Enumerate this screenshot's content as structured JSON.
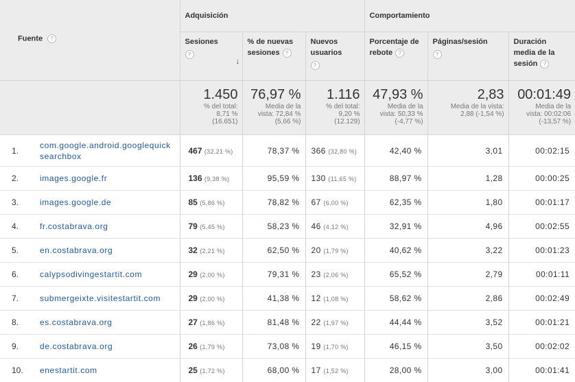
{
  "header": {
    "fuente_label": "Fuente",
    "group_adquisicion": "Adquisición",
    "group_comportamiento": "Comportamiento",
    "col_sesiones": "Sesiones",
    "col_nuevas_sesiones": "% de nuevas sesiones",
    "col_nuevos_usuarios": "Nuevos usuarios",
    "col_rebote": "Porcentaje de rebote",
    "col_paginas": "Páginas/sesión",
    "col_duracion": "Duración media de la sesión",
    "help_glyph": "?",
    "sort_glyph": "↓"
  },
  "totals": {
    "sesiones": {
      "value": "1.450",
      "line1": "% del total:",
      "line2": "8,71 %",
      "line3": "(16.651)"
    },
    "nuevas_sesiones": {
      "value": "76,97 %",
      "line1": "Media de la",
      "line2": "vista: 72,84 %",
      "line3": "(5,66 %)"
    },
    "nuevos_usuarios": {
      "value": "1.116",
      "line1": "% del total:",
      "line2": "9,20 %",
      "line3": "(12.129)"
    },
    "rebote": {
      "value": "47,93 %",
      "line1": "Media de la",
      "line2": "vista: 50,33 %",
      "line3": "(-4,77 %)"
    },
    "paginas": {
      "value": "2,83",
      "line1": "Media de la vista:",
      "line2": "2,88 (-1,54 %)",
      "line3": ""
    },
    "duracion": {
      "value": "00:01:49",
      "line1": "Media de la",
      "line2": "vista: 00:02:06",
      "line3": "(-13,57 %)"
    }
  },
  "rows": [
    {
      "n": "1.",
      "fuente": "com.google.android.googlequicksearchbox",
      "sesiones": "467",
      "sesiones_pct": "(32,21 %)",
      "nuevas": "78,37 %",
      "usuarios": "366",
      "usuarios_pct": "(32,80 %)",
      "rebote": "42,40 %",
      "paginas": "3,01",
      "duracion": "00:02:15"
    },
    {
      "n": "2.",
      "fuente": "images.google.fr",
      "sesiones": "136",
      "sesiones_pct": "(9,38 %)",
      "nuevas": "95,59 %",
      "usuarios": "130",
      "usuarios_pct": "(11,65 %)",
      "rebote": "88,97 %",
      "paginas": "1,28",
      "duracion": "00:00:25"
    },
    {
      "n": "3.",
      "fuente": "images.google.de",
      "sesiones": "85",
      "sesiones_pct": "(5,86 %)",
      "nuevas": "78,82 %",
      "usuarios": "67",
      "usuarios_pct": "(6,00 %)",
      "rebote": "62,35 %",
      "paginas": "1,80",
      "duracion": "00:01:17"
    },
    {
      "n": "4.",
      "fuente": "fr.costabrava.org",
      "sesiones": "79",
      "sesiones_pct": "(5,45 %)",
      "nuevas": "58,23 %",
      "usuarios": "46",
      "usuarios_pct": "(4,12 %)",
      "rebote": "32,91 %",
      "paginas": "4,96",
      "duracion": "00:02:55"
    },
    {
      "n": "5.",
      "fuente": "en.costabrava.org",
      "sesiones": "32",
      "sesiones_pct": "(2,21 %)",
      "nuevas": "62,50 %",
      "usuarios": "20",
      "usuarios_pct": "(1,79 %)",
      "rebote": "40,62 %",
      "paginas": "3,22",
      "duracion": "00:01:23"
    },
    {
      "n": "6.",
      "fuente": "calypsodivingestartit.com",
      "sesiones": "29",
      "sesiones_pct": "(2,00 %)",
      "nuevas": "79,31 %",
      "usuarios": "23",
      "usuarios_pct": "(2,06 %)",
      "rebote": "65,52 %",
      "paginas": "2,79",
      "duracion": "00:01:11"
    },
    {
      "n": "7.",
      "fuente": "submergeixte.visitestartit.com",
      "sesiones": "29",
      "sesiones_pct": "(2,00 %)",
      "nuevas": "41,38 %",
      "usuarios": "12",
      "usuarios_pct": "(1,08 %)",
      "rebote": "58,62 %",
      "paginas": "2,86",
      "duracion": "00:02:49"
    },
    {
      "n": "8.",
      "fuente": "es.costabrava.org",
      "sesiones": "27",
      "sesiones_pct": "(1,86 %)",
      "nuevas": "81,48 %",
      "usuarios": "22",
      "usuarios_pct": "(1,97 %)",
      "rebote": "44,44 %",
      "paginas": "3,52",
      "duracion": "00:01:21"
    },
    {
      "n": "9.",
      "fuente": "de.costabrava.org",
      "sesiones": "26",
      "sesiones_pct": "(1,79 %)",
      "nuevas": "73,08 %",
      "usuarios": "19",
      "usuarios_pct": "(1,70 %)",
      "rebote": "46,15 %",
      "paginas": "3,50",
      "duracion": "00:02:02"
    },
    {
      "n": "10.",
      "fuente": "enestartit.com",
      "sesiones": "25",
      "sesiones_pct": "(1,72 %)",
      "nuevas": "68,00 %",
      "usuarios": "17",
      "usuarios_pct": "(1,52 %)",
      "rebote": "28,00 %",
      "paginas": "3,00",
      "duracion": "00:01:41"
    }
  ]
}
